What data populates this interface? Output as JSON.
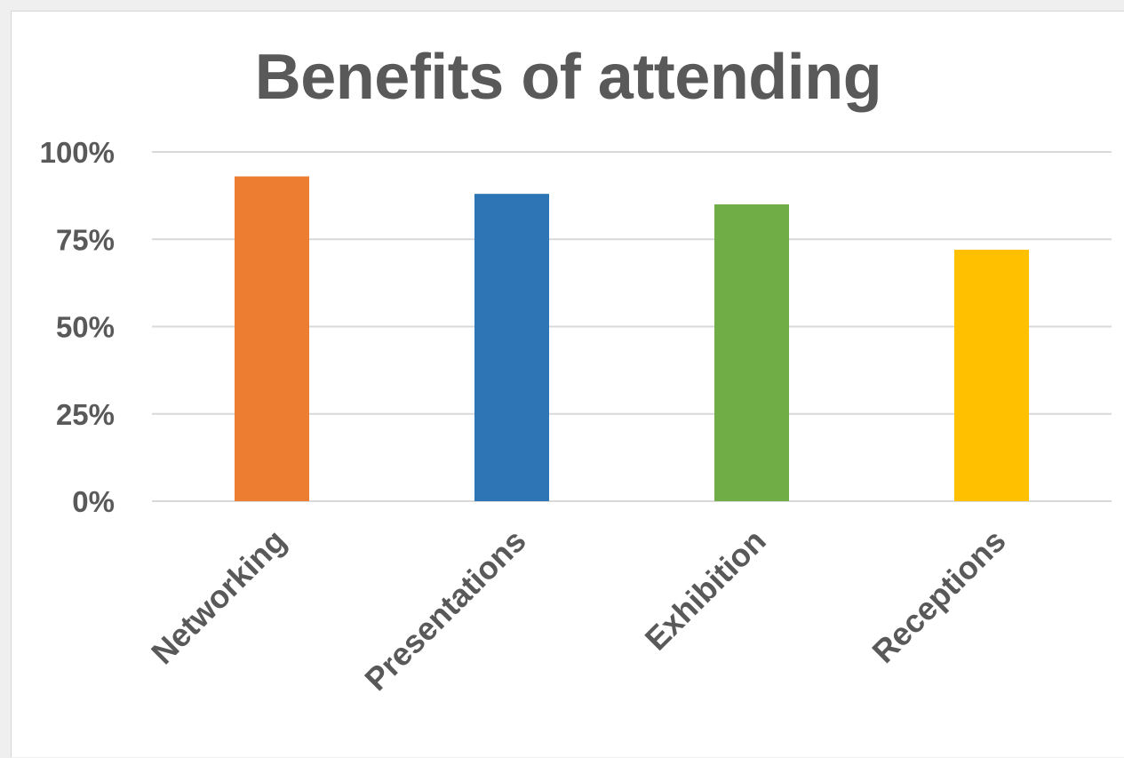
{
  "chart_data": {
    "type": "bar",
    "title": "Benefits of attending",
    "xlabel": "",
    "ylabel": "",
    "categories": [
      "Networking",
      "Presentations",
      "Exhibition",
      "Receptions"
    ],
    "values": [
      93,
      88,
      85,
      72
    ],
    "colors": [
      "#ed7d31",
      "#2e75b6",
      "#70ad47",
      "#ffc000"
    ],
    "ylim": [
      0,
      100
    ],
    "yticks": [
      0,
      25,
      50,
      75,
      100
    ],
    "ytick_labels": [
      "0%",
      "25%",
      "50%",
      "75%",
      "100%"
    ],
    "grid": true,
    "legend": "none"
  }
}
